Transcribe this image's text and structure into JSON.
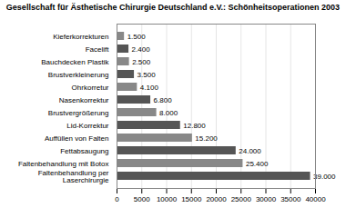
{
  "chart_data": {
    "type": "bar",
    "orientation": "horizontal",
    "title": "Gesellschaft für Ästhetische Chirurgie Deutschland e.V.: Schönheitsoperationen 2003",
    "categories": [
      "Faltenbehandlung per\nLaserchirurgie",
      "Faltenbehandlung mit Botox",
      "Fettabsaugung",
      "Auffüllen von Falten",
      "Lid-Korrektur",
      "Brustvergrößerung",
      "Nasenkorrektur",
      "Ohrkorretur",
      "Brustverkleinerung",
      "Bauchdecken Plastik",
      "Facelift",
      "Kieferkorrekturen"
    ],
    "values": [
      39000,
      25400,
      24000,
      15200,
      12800,
      8000,
      6800,
      4100,
      3500,
      2500,
      2400,
      1500
    ],
    "value_labels": [
      "39.000",
      "25.400",
      "24.000",
      "15.200",
      "12.800",
      "8.000",
      "6.800",
      "4.100",
      "3.500",
      "2.500",
      "2.400",
      "1.500"
    ],
    "data_labels": true,
    "colors": [
      "#555555",
      "#888888",
      "#555555",
      "#888888",
      "#555555",
      "#888888",
      "#555555",
      "#888888",
      "#555555",
      "#888888",
      "#555555",
      "#888888"
    ],
    "xlim": [
      0,
      40000
    ],
    "xticks": [
      0,
      5000,
      10000,
      15000,
      20000,
      25000,
      30000,
      35000,
      40000
    ],
    "grid": true
  }
}
